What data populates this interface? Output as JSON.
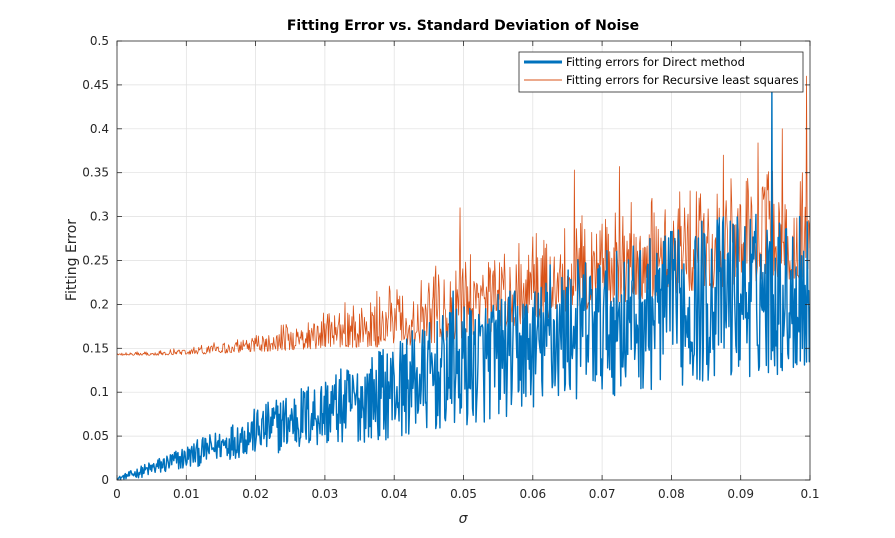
{
  "chart_data": {
    "type": "line",
    "title": "Fitting Error vs. Standard Deviation of Noise",
    "xlabel": "σ",
    "ylabel": "Fitting Error",
    "xlim": [
      0,
      0.1
    ],
    "ylim": [
      0,
      0.5
    ],
    "x_ticks": [
      "0",
      "0.01",
      "0.02",
      "0.03",
      "0.04",
      "0.05",
      "0.06",
      "0.07",
      "0.08",
      "0.09",
      "0.1"
    ],
    "y_ticks": [
      "0",
      "0.05",
      "0.1",
      "0.15",
      "0.2",
      "0.25",
      "0.3",
      "0.35",
      "0.4",
      "0.45",
      "0.5"
    ],
    "grid": true,
    "legend_position": "top-right",
    "series": [
      {
        "name": "Fitting errors for Direct method",
        "color": "#0072BD",
        "x": [
          0,
          0.005,
          0.01,
          0.015,
          0.02,
          0.025,
          0.03,
          0.035,
          0.04,
          0.045,
          0.05,
          0.055,
          0.06,
          0.065,
          0.07,
          0.075,
          0.08,
          0.085,
          0.09,
          0.095,
          0.1
        ],
        "mean": [
          0.0,
          0.013,
          0.026,
          0.04,
          0.052,
          0.062,
          0.073,
          0.083,
          0.093,
          0.104,
          0.115,
          0.128,
          0.142,
          0.153,
          0.163,
          0.172,
          0.182,
          0.192,
          0.2,
          0.205,
          0.21
        ],
        "upper": [
          0.003,
          0.022,
          0.04,
          0.058,
          0.082,
          0.102,
          0.12,
          0.135,
          0.16,
          0.18,
          0.2,
          0.215,
          0.22,
          0.25,
          0.26,
          0.27,
          0.285,
          0.3,
          0.31,
          0.3,
          0.3
        ],
        "lower": [
          0.0,
          0.004,
          0.012,
          0.022,
          0.028,
          0.032,
          0.037,
          0.042,
          0.047,
          0.053,
          0.058,
          0.068,
          0.08,
          0.088,
          0.094,
          0.1,
          0.105,
          0.11,
          0.114,
          0.12,
          0.12
        ],
        "spikes": [
          [
            0.0485,
            0.215
          ],
          [
            0.0625,
            0.245
          ],
          [
            0.0805,
            0.275
          ],
          [
            0.0945,
            0.45
          ],
          [
            0.0985,
            0.3
          ]
        ]
      },
      {
        "name": "Fitting errors for Recursive least squares",
        "color": "#D95319",
        "x": [
          0,
          0.005,
          0.01,
          0.015,
          0.02,
          0.025,
          0.03,
          0.035,
          0.04,
          0.045,
          0.05,
          0.055,
          0.06,
          0.065,
          0.07,
          0.075,
          0.08,
          0.085,
          0.09,
          0.095,
          0.1
        ],
        "mean": [
          0.143,
          0.144,
          0.146,
          0.149,
          0.154,
          0.16,
          0.168,
          0.177,
          0.186,
          0.196,
          0.205,
          0.213,
          0.22,
          0.228,
          0.236,
          0.244,
          0.252,
          0.258,
          0.263,
          0.268,
          0.272
        ],
        "upper": [
          0.145,
          0.147,
          0.151,
          0.158,
          0.168,
          0.18,
          0.195,
          0.208,
          0.225,
          0.24,
          0.26,
          0.275,
          0.285,
          0.3,
          0.31,
          0.32,
          0.33,
          0.34,
          0.35,
          0.36,
          0.35
        ],
        "lower": [
          0.142,
          0.142,
          0.143,
          0.144,
          0.146,
          0.148,
          0.15,
          0.151,
          0.152,
          0.155,
          0.162,
          0.17,
          0.18,
          0.19,
          0.198,
          0.205,
          0.212,
          0.218,
          0.222,
          0.225,
          0.228
        ],
        "spikes": [
          [
            0.0375,
            0.215
          ],
          [
            0.0495,
            0.31
          ],
          [
            0.066,
            0.353
          ],
          [
            0.0725,
            0.357
          ],
          [
            0.0875,
            0.37
          ],
          [
            0.0925,
            0.384
          ],
          [
            0.096,
            0.4
          ],
          [
            0.0995,
            0.46
          ]
        ]
      }
    ]
  }
}
